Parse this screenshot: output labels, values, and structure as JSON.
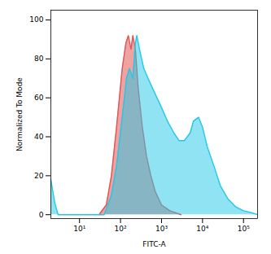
{
  "chart_data": {
    "type": "area",
    "x_label": "FITC-A",
    "y_label": "Normalized To Mode",
    "log": "x",
    "grid": false,
    "xlim": [
      2,
      220000
    ],
    "ylim": [
      -2,
      105
    ],
    "xticks": [
      {
        "value": 10,
        "label": "10¹"
      },
      {
        "value": 100,
        "label": "10²"
      },
      {
        "value": 1000,
        "label": "10³"
      },
      {
        "value": 10000,
        "label": "10⁴"
      },
      {
        "value": 100000,
        "label": "10⁵"
      }
    ],
    "yticks": [
      0,
      20,
      40,
      60,
      80,
      100
    ],
    "series": [
      {
        "color": "#e05555",
        "x": [
          30,
          45,
          60,
          80,
          110,
          135,
          155,
          180,
          200,
          230,
          270,
          340,
          430,
          550,
          700,
          1000,
          1600,
          3000
        ],
        "values": [
          0,
          5,
          20,
          45,
          75,
          88,
          92,
          85,
          92,
          85,
          65,
          45,
          30,
          20,
          12,
          5,
          2,
          0
        ]
      },
      {
        "color": "#22c8e6",
        "x": [
          2,
          2.5,
          3,
          40,
          45,
          60,
          80,
          110,
          140,
          165,
          200,
          230,
          250,
          290,
          370,
          470,
          700,
          1000,
          1400,
          2000,
          2700,
          3600,
          5000,
          6000,
          8000,
          10000,
          13000,
          19000,
          27000,
          42000,
          65000,
          100000,
          160000,
          220000
        ],
        "values": [
          18,
          6,
          0,
          0,
          3,
          10,
          25,
          50,
          70,
          75,
          70,
          88,
          92,
          85,
          75,
          70,
          62,
          55,
          48,
          42,
          38,
          38,
          42,
          48,
          50,
          45,
          35,
          25,
          15,
          8,
          4,
          2,
          1,
          0
        ]
      }
    ]
  }
}
